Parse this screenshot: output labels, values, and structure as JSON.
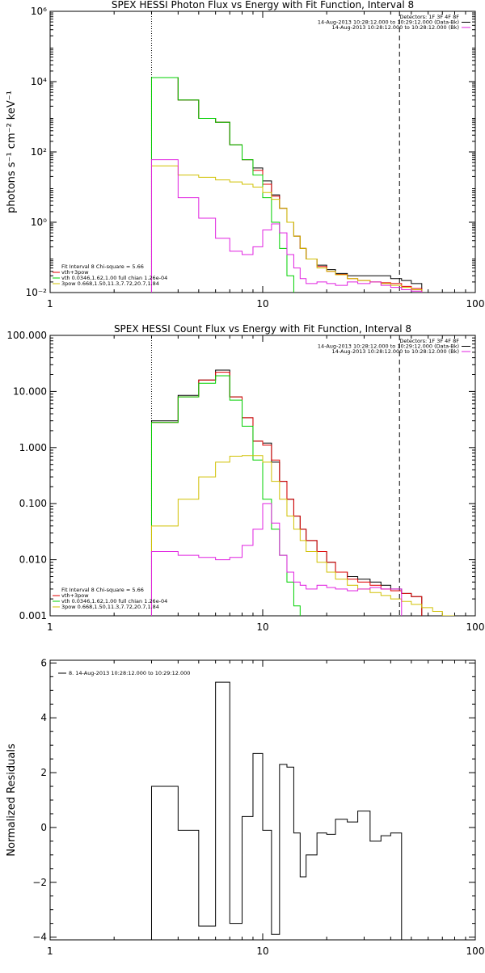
{
  "chart_data": [
    {
      "type": "line",
      "title": "SPEX HESSI Photon Flux vs Energy with Fit Function, Interval 8",
      "xlabel": "",
      "ylabel": "photons s⁻¹ cm⁻² keV⁻¹",
      "xscale": "log",
      "yscale": "log",
      "xlim": [
        1,
        100
      ],
      "ylim": [
        0.01,
        1000000
      ],
      "x_ticks": [
        1,
        10,
        100
      ],
      "x_tick_labels": [
        "1",
        "10",
        "100"
      ],
      "y_ticks": [
        0.01,
        1,
        100,
        10000,
        1000000
      ],
      "y_tick_labels": [
        "10⁻²",
        "10⁰",
        "10²",
        "10⁴",
        "10⁶"
      ],
      "vlines": [
        {
          "x": 3,
          "style": "dotted"
        },
        {
          "x": 44,
          "style": "dashed"
        }
      ],
      "legend_top_right": [
        {
          "text": "Detectors: 1F 3F 4F 8F",
          "color": "#000000"
        },
        {
          "text": "14-Aug-2013 10:28:12.000 to 10:29:12.000 (Data-Bk)",
          "color": "#000000"
        },
        {
          "text": "14-Aug-2013 10:28:12.000 to 10:28:12.000 (Bk)",
          "color": "#e020e0"
        }
      ],
      "legend_bottom_left": [
        {
          "text": "Fit Interval 8    Chi-square = 5.66",
          "color": "#000000"
        },
        {
          "text": "vth+3pow",
          "color": "#e00000"
        },
        {
          "text": "vth 0.0346,1.62,1.00  full chian 1.26e-04",
          "color": "#00d000"
        },
        {
          "text": "3pow 0.668,1.50,11.3,7.72,20.7,1.84",
          "color": "#d0c000"
        }
      ],
      "edges": [
        3,
        4,
        5,
        6,
        7,
        8,
        9,
        10,
        11,
        12,
        13,
        14,
        15,
        16,
        18,
        20,
        22,
        25,
        28,
        32,
        36,
        40,
        45,
        50,
        56
      ],
      "series": [
        {
          "color": "#000000",
          "values": [
            13000,
            3000,
            900,
            700,
            160,
            60,
            35,
            15,
            6,
            2.5,
            1,
            0.4,
            0.18,
            0.09,
            0.06,
            0.045,
            0.035,
            0.03,
            0.03,
            0.03,
            0.03,
            0.025,
            0.022,
            0.018
          ]
        },
        {
          "color": "#e00000",
          "values": [
            13000,
            3000,
            900,
            700,
            160,
            60,
            30,
            12,
            5.5,
            2.5,
            1,
            0.4,
            0.18,
            0.09,
            0.055,
            0.04,
            0.033,
            0.025,
            0.022,
            0.02,
            0.019,
            0.018,
            0.015,
            0.013
          ]
        },
        {
          "color": "#00d000",
          "values": [
            13000,
            3000,
            900,
            700,
            160,
            60,
            22,
            5,
            1,
            0.18,
            0.03,
            0.005
          ]
        },
        {
          "color": "#d0c000",
          "values": [
            40,
            22,
            19,
            16,
            14,
            12,
            10,
            7,
            4.5,
            2.5,
            1,
            0.4,
            0.18,
            0.09,
            0.05,
            0.04,
            0.032,
            0.025,
            0.022,
            0.02,
            0.018,
            0.016,
            0.014,
            0.012
          ]
        },
        {
          "color": "#e020e0",
          "values": [
            60,
            5,
            1.3,
            0.35,
            0.15,
            0.12,
            0.2,
            0.6,
            0.9,
            0.5,
            0.12,
            0.05,
            0.025,
            0.018,
            0.02,
            0.018,
            0.016,
            0.02,
            0.018,
            0.02,
            0.016,
            0.014,
            0.012,
            0.011
          ]
        }
      ]
    },
    {
      "type": "line",
      "title": "SPEX HESSI Count Flux vs Energy with Fit Function, Interval 8",
      "xlabel": "",
      "ylabel": "",
      "xscale": "log",
      "yscale": "log",
      "xlim": [
        1,
        100
      ],
      "ylim": [
        0.001,
        100
      ],
      "x_ticks": [
        1,
        10,
        100
      ],
      "x_tick_labels": [
        "1",
        "10",
        "100"
      ],
      "y_ticks": [
        0.001,
        0.01,
        0.1,
        1,
        10,
        100
      ],
      "y_tick_labels": [
        "0.001",
        "0.010",
        "0.100",
        "1.000",
        "10.000",
        "100.000"
      ],
      "vlines": [
        {
          "x": 3,
          "style": "dotted"
        },
        {
          "x": 44,
          "style": "dashed"
        }
      ],
      "legend_top_right": [
        {
          "text": "Detectors: 1F 3F 4F 8F",
          "color": "#000000"
        },
        {
          "text": "14-Aug-2013 10:28:12.000 to 10:29:12.000 (Data-Bk)",
          "color": "#000000"
        },
        {
          "text": "14-Aug-2013 10:28:12.000 to 10:28:12.000 (Bk)",
          "color": "#e020e0"
        }
      ],
      "legend_bottom_left": [
        {
          "text": "Fit Interval 8    Chi-square = 5.66",
          "color": "#000000"
        },
        {
          "text": "vth+3pow",
          "color": "#e00000"
        },
        {
          "text": "vth 0.0346,1.62,1.00  full chian 1.26e-04",
          "color": "#00d000"
        },
        {
          "text": "3pow 0.668,1.50,11.3,7.72,20.7,1.84",
          "color": "#d0c000"
        }
      ],
      "edges": [
        3,
        4,
        5,
        6,
        7,
        8,
        9,
        10,
        11,
        12,
        13,
        14,
        15,
        16,
        18,
        20,
        22,
        25,
        28,
        32,
        36,
        40,
        45,
        50,
        56,
        63,
        70,
        80
      ],
      "series": [
        {
          "color": "#000000",
          "values": [
            3,
            8.5,
            16,
            24,
            8,
            3.4,
            1.3,
            1.2,
            0.55,
            0.25,
            0.12,
            0.06,
            0.035,
            0.022,
            0.014,
            0.009,
            0.006,
            0.005,
            0.0045,
            0.004,
            0.0035,
            0.003,
            0.0025,
            0.0022
          ]
        },
        {
          "color": "#e00000",
          "values": [
            2.8,
            8,
            16,
            22,
            8,
            3.4,
            1.3,
            1.1,
            0.6,
            0.25,
            0.12,
            0.06,
            0.035,
            0.022,
            0.014,
            0.009,
            0.006,
            0.0045,
            0.004,
            0.0035,
            0.003,
            0.0028,
            0.0025,
            0.0022
          ]
        },
        {
          "color": "#00d000",
          "values": [
            2.8,
            8,
            14,
            19,
            7,
            2.4,
            0.6,
            0.12,
            0.035,
            0.012,
            0.004,
            0.0015
          ]
        },
        {
          "color": "#d0c000",
          "values": [
            0.04,
            0.12,
            0.3,
            0.55,
            0.7,
            0.72,
            0.72,
            0.55,
            0.25,
            0.12,
            0.06,
            0.035,
            0.022,
            0.014,
            0.009,
            0.006,
            0.0045,
            0.0035,
            0.003,
            0.0026,
            0.0023,
            0.002,
            0.0018,
            0.0016,
            0.0014,
            0.0012,
            0.001
          ]
        },
        {
          "color": "#e020e0",
          "values": [
            0.014,
            0.012,
            0.011,
            0.01,
            0.011,
            0.018,
            0.035,
            0.1,
            0.045,
            0.012,
            0.006,
            0.004,
            0.0035,
            0.003,
            0.0035,
            0.0032,
            0.003,
            0.0028,
            0.003,
            0.0032,
            0.003,
            0.003
          ]
        }
      ]
    },
    {
      "type": "line",
      "title": "",
      "xlabel": "",
      "ylabel": "Normalized Residuals",
      "xscale": "log",
      "yscale": "linear",
      "xlim": [
        1,
        100
      ],
      "ylim": [
        -4.1,
        6.1
      ],
      "x_ticks": [
        1,
        10,
        100
      ],
      "x_tick_labels": [
        "1",
        "10",
        "100"
      ],
      "y_ticks": [
        -4,
        -2,
        0,
        2,
        4,
        6
      ],
      "y_tick_labels": [
        "−4",
        "−2",
        "0",
        "2",
        "4",
        "6"
      ],
      "legend_top_left": [
        {
          "text": "8. 14-Aug-2013 10:28:12.000 to 10:29:12.000",
          "color": "#000000"
        }
      ],
      "edges": [
        3,
        4,
        5,
        6,
        7,
        8,
        9,
        10,
        11,
        12,
        13,
        14,
        15,
        16,
        18,
        20,
        22,
        25,
        28,
        32,
        36,
        40,
        45
      ],
      "series": [
        {
          "color": "#000000",
          "values": [
            1.5,
            -0.1,
            -3.6,
            5.3,
            -3.5,
            0.4,
            2.7,
            -0.1,
            -3.9,
            2.3,
            2.2,
            -0.2,
            -1.8,
            -1.0,
            -0.2,
            -0.25,
            0.3,
            0.2,
            0.6,
            -0.5,
            -0.3,
            -0.2
          ]
        }
      ]
    }
  ]
}
